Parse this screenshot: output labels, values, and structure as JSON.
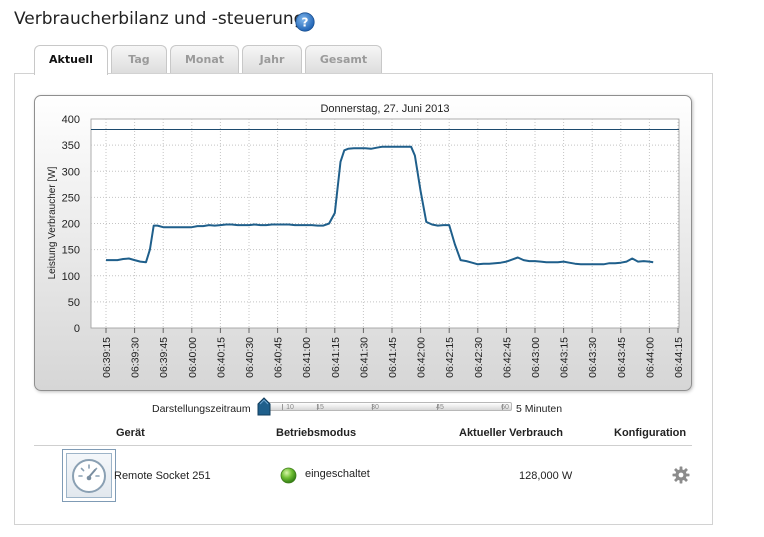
{
  "page": {
    "title": "Verbraucherbilanz und -steuerung"
  },
  "tabs": [
    {
      "label": "Aktuell",
      "active": true
    },
    {
      "label": "Tag",
      "active": false
    },
    {
      "label": "Monat",
      "active": false
    },
    {
      "label": "Jahr",
      "active": false
    },
    {
      "label": "Gesamt",
      "active": false
    }
  ],
  "chart_data": {
    "type": "line",
    "title": "Donnerstag, 27. Juni 2013",
    "ylabel": "Leistung Verbraucher [W]",
    "xlabel": "",
    "ylim": [
      0,
      400
    ],
    "yticks": [
      0,
      50,
      100,
      150,
      200,
      250,
      300,
      350,
      400
    ],
    "grid": true,
    "x_tick_labels": [
      "06:39:15",
      "06:39:30",
      "06:39:45",
      "06:40:00",
      "06:40:15",
      "06:40:30",
      "06:40:45",
      "06:41:00",
      "06:41:15",
      "06:41:30",
      "06:41:45",
      "06:42:00",
      "06:42:15",
      "06:42:30",
      "06:42:45",
      "06:43:00",
      "06:43:15",
      "06:43:30",
      "06:43:45",
      "06:44:00",
      "06:44:15"
    ],
    "reference_line": 380,
    "series": [
      {
        "color": "#1f5f8b",
        "points": [
          [
            "06:39:15",
            130
          ],
          [
            "06:39:18",
            130
          ],
          [
            "06:39:21",
            130
          ],
          [
            "06:39:24",
            132
          ],
          [
            "06:39:27",
            133
          ],
          [
            "06:39:30",
            130
          ],
          [
            "06:39:33",
            127
          ],
          [
            "06:39:36",
            126
          ],
          [
            "06:39:38",
            150
          ],
          [
            "06:39:40",
            196
          ],
          [
            "06:39:42",
            196
          ],
          [
            "06:39:45",
            193
          ],
          [
            "06:39:48",
            193
          ],
          [
            "06:39:51",
            193
          ],
          [
            "06:39:54",
            193
          ],
          [
            "06:39:57",
            193
          ],
          [
            "06:40:00",
            193
          ],
          [
            "06:40:03",
            195
          ],
          [
            "06:40:06",
            195
          ],
          [
            "06:40:09",
            197
          ],
          [
            "06:40:12",
            196
          ],
          [
            "06:40:15",
            197
          ],
          [
            "06:40:18",
            198
          ],
          [
            "06:40:21",
            198
          ],
          [
            "06:40:24",
            197
          ],
          [
            "06:40:27",
            197
          ],
          [
            "06:40:30",
            197
          ],
          [
            "06:40:33",
            198
          ],
          [
            "06:40:36",
            197
          ],
          [
            "06:40:39",
            197
          ],
          [
            "06:40:42",
            198
          ],
          [
            "06:40:45",
            198
          ],
          [
            "06:40:48",
            198
          ],
          [
            "06:40:51",
            198
          ],
          [
            "06:40:54",
            197
          ],
          [
            "06:40:57",
            197
          ],
          [
            "06:41:00",
            197
          ],
          [
            "06:41:03",
            197
          ],
          [
            "06:41:06",
            196
          ],
          [
            "06:41:09",
            196
          ],
          [
            "06:41:12",
            200
          ],
          [
            "06:41:15",
            220
          ],
          [
            "06:41:18",
            318
          ],
          [
            "06:41:20",
            340
          ],
          [
            "06:41:22",
            343
          ],
          [
            "06:41:25",
            344
          ],
          [
            "06:41:28",
            344
          ],
          [
            "06:41:31",
            344
          ],
          [
            "06:41:34",
            343
          ],
          [
            "06:41:37",
            345
          ],
          [
            "06:41:40",
            347
          ],
          [
            "06:41:43",
            347
          ],
          [
            "06:41:46",
            347
          ],
          [
            "06:41:49",
            347
          ],
          [
            "06:41:52",
            347
          ],
          [
            "06:41:55",
            347
          ],
          [
            "06:41:57",
            330
          ],
          [
            "06:42:00",
            262
          ],
          [
            "06:42:03",
            203
          ],
          [
            "06:42:06",
            198
          ],
          [
            "06:42:09",
            196
          ],
          [
            "06:42:12",
            197
          ],
          [
            "06:42:15",
            197
          ],
          [
            "06:42:18",
            160
          ],
          [
            "06:42:21",
            130
          ],
          [
            "06:42:24",
            128
          ],
          [
            "06:42:27",
            125
          ],
          [
            "06:42:30",
            122
          ],
          [
            "06:42:33",
            123
          ],
          [
            "06:42:36",
            123
          ],
          [
            "06:42:39",
            124
          ],
          [
            "06:42:42",
            125
          ],
          [
            "06:42:45",
            127
          ],
          [
            "06:42:48",
            131
          ],
          [
            "06:42:51",
            135
          ],
          [
            "06:42:54",
            130
          ],
          [
            "06:42:57",
            128
          ],
          [
            "06:43:00",
            128
          ],
          [
            "06:43:03",
            127
          ],
          [
            "06:43:06",
            126
          ],
          [
            "06:43:09",
            126
          ],
          [
            "06:43:12",
            126
          ],
          [
            "06:43:15",
            127
          ],
          [
            "06:43:18",
            125
          ],
          [
            "06:43:21",
            123
          ],
          [
            "06:43:24",
            122
          ],
          [
            "06:43:27",
            122
          ],
          [
            "06:43:30",
            122
          ],
          [
            "06:43:33",
            122
          ],
          [
            "06:43:36",
            122
          ],
          [
            "06:43:39",
            124
          ],
          [
            "06:43:42",
            124
          ],
          [
            "06:43:45",
            125
          ],
          [
            "06:43:48",
            127
          ],
          [
            "06:43:51",
            133
          ],
          [
            "06:43:54",
            127
          ],
          [
            "06:43:57",
            128
          ],
          [
            "06:44:00",
            127
          ],
          [
            "06:44:02",
            126
          ]
        ]
      }
    ]
  },
  "range": {
    "label": "Darstellungszeitraum",
    "unit": "5 Minuten",
    "marks": [
      "10",
      "15",
      "30",
      "45",
      "60"
    ],
    "selected_fraction": 0.0
  },
  "table": {
    "headers": {
      "device": "Gerät",
      "mode": "Betriebsmodus",
      "consumption": "Aktueller Verbrauch",
      "config": "Konfiguration"
    },
    "rows": [
      {
        "device": "Remote Socket 251",
        "mode": "eingeschaltet",
        "consumption": "128,000 W",
        "status_color": "#5fb12e"
      }
    ]
  },
  "icons": {
    "help": "help-icon",
    "gear": "gear-icon",
    "device": "socket-meter-icon"
  }
}
